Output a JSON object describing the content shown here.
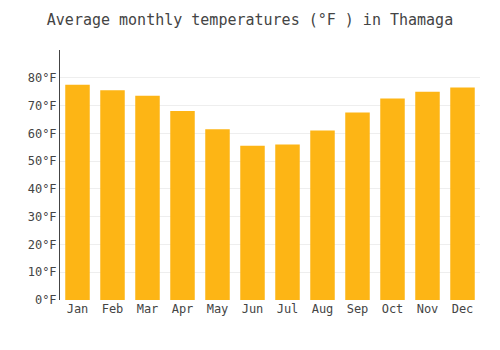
{
  "chart_data": {
    "type": "bar",
    "title": "Average monthly temperatures (°F ) in Thamaga",
    "categories": [
      "Jan",
      "Feb",
      "Mar",
      "Apr",
      "May",
      "Jun",
      "Jul",
      "Aug",
      "Sep",
      "Oct",
      "Nov",
      "Dec"
    ],
    "values": [
      77.5,
      75.5,
      73.5,
      68,
      61.5,
      55.5,
      56,
      61,
      67.5,
      72.5,
      75,
      76.5
    ],
    "color": "#FDB515",
    "ylim": [
      0,
      90
    ],
    "yticks": [
      {
        "value": 0,
        "label": "0°F"
      },
      {
        "value": 10,
        "label": "10°F"
      },
      {
        "value": 20,
        "label": "20°F"
      },
      {
        "value": 30,
        "label": "30°F"
      },
      {
        "value": 40,
        "label": "40°F"
      },
      {
        "value": 50,
        "label": "50°F"
      },
      {
        "value": 60,
        "label": "60°F"
      },
      {
        "value": 70,
        "label": "70°F"
      },
      {
        "value": 80,
        "label": "80°F"
      }
    ],
    "grid": true
  }
}
